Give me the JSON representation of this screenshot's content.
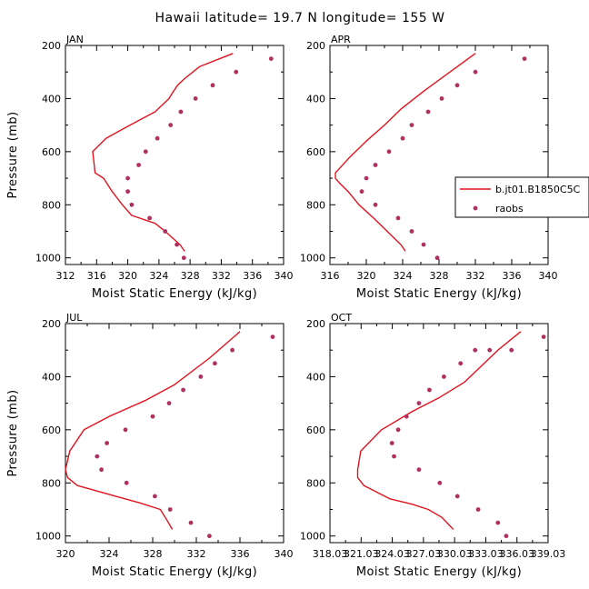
{
  "title": "Hawaii  latitude= 19.7 N longitude= 155 W",
  "line_color": "#e0141e",
  "marker_color": "#b03060",
  "legend": {
    "placement": "right of the APR panel",
    "line_label": "b.jt01.B1850C5C",
    "marker_label": "raobs"
  },
  "chart_data": [
    {
      "type": "line",
      "panel_label": "JAN",
      "xlabel": "Moist Static Energy (kJ/kg)",
      "ylabel": "Pressure (mb)",
      "xlim": [
        312,
        340
      ],
      "ylim": [
        1025,
        200
      ],
      "xticks": [
        "312",
        "316",
        "320",
        "324",
        "328",
        "332",
        "336",
        "340"
      ],
      "yticks": [
        "200",
        "400",
        "600",
        "800",
        "1000"
      ],
      "series": [
        {
          "name": "b.jt01.B1850C5C",
          "style": "line",
          "x": [
            327.3,
            326.7,
            324.8,
            323.5,
            320.5,
            319.3,
            318.0,
            316.9,
            315.8,
            315.5,
            317.2,
            320.3,
            323.5,
            325.3,
            325.7,
            326.4,
            327.3,
            329.2,
            333.5
          ],
          "y": [
            975,
            950,
            900,
            870,
            840,
            800,
            750,
            700,
            680,
            600,
            550,
            500,
            450,
            400,
            380,
            350,
            325,
            280,
            230
          ]
        },
        {
          "name": "raobs",
          "style": "markers",
          "x": [
            327.2,
            326.3,
            324.8,
            322.8,
            320.5,
            320.0,
            320.0,
            321.4,
            322.3,
            323.8,
            325.5,
            326.8,
            328.7,
            330.9,
            333.9,
            338.4
          ],
          "y": [
            1000,
            950,
            900,
            850,
            800,
            750,
            700,
            650,
            600,
            550,
            500,
            450,
            400,
            350,
            300,
            250
          ]
        }
      ]
    },
    {
      "type": "line",
      "panel_label": "APR",
      "xlabel": "Moist Static Energy (kJ/kg)",
      "ylabel": "",
      "xlim": [
        316,
        340
      ],
      "ylim": [
        1025,
        200
      ],
      "xticks": [
        "316",
        "320",
        "324",
        "328",
        "332",
        "336",
        "340"
      ],
      "yticks": [
        "200",
        "400",
        "600",
        "800",
        "1000"
      ],
      "series": [
        {
          "name": "b.jt01.B1850C5C",
          "style": "line",
          "x": [
            324.3,
            323.8,
            322.3,
            320.8,
            319.2,
            318.0,
            317.1,
            316.6,
            316.6,
            318.2,
            320.0,
            322.0,
            323.8,
            326.4,
            329.6,
            332.0
          ],
          "y": [
            975,
            950,
            900,
            850,
            800,
            750,
            720,
            700,
            680,
            620,
            560,
            500,
            440,
            370,
            290,
            230
          ]
        },
        {
          "name": "raobs",
          "style": "markers",
          "x": [
            327.8,
            326.3,
            325.0,
            323.5,
            321.0,
            319.5,
            320.0,
            321.0,
            322.5,
            324.0,
            325.0,
            326.8,
            328.3,
            330.0,
            332.0,
            337.4
          ],
          "y": [
            1000,
            950,
            900,
            850,
            800,
            750,
            700,
            650,
            600,
            550,
            500,
            450,
            400,
            350,
            300,
            250
          ]
        }
      ]
    },
    {
      "type": "line",
      "panel_label": "JUL",
      "xlabel": "Moist Static Energy (kJ/kg)",
      "ylabel": "Pressure (mb)",
      "xlim": [
        320,
        340
      ],
      "ylim": [
        1025,
        200
      ],
      "xticks": [
        "320",
        "324",
        "328",
        "332",
        "336",
        "340"
      ],
      "yticks": [
        "200",
        "400",
        "600",
        "800",
        "1000"
      ],
      "series": [
        {
          "name": "b.jt01.B1850C5C",
          "style": "line",
          "x": [
            329.8,
            329.3,
            328.7,
            326.8,
            324.6,
            321.1,
            320.2,
            320.0,
            320.4,
            321.7,
            324.0,
            327.3,
            330.0,
            333.2,
            336.0
          ],
          "y": [
            975,
            940,
            900,
            875,
            850,
            810,
            780,
            750,
            680,
            600,
            550,
            490,
            430,
            330,
            230
          ]
        },
        {
          "name": "raobs",
          "style": "markers",
          "x": [
            333.2,
            331.5,
            329.6,
            328.2,
            325.6,
            323.3,
            322.9,
            323.8,
            325.5,
            328.0,
            329.5,
            330.8,
            332.4,
            333.7,
            335.3,
            339.0
          ],
          "y": [
            1000,
            950,
            900,
            850,
            800,
            750,
            700,
            650,
            600,
            550,
            500,
            450,
            400,
            350,
            300,
            250
          ]
        }
      ]
    },
    {
      "type": "line",
      "panel_label": "OCT",
      "xlabel": "Moist Static Energy (kJ/kg)",
      "ylabel": "",
      "xlim": [
        318.03,
        339.03
      ],
      "ylim": [
        1025,
        200
      ],
      "xticks": [
        "318.03",
        "321.03",
        "324.03",
        "327.03",
        "330.03",
        "333.03",
        "336.03",
        "339.03"
      ],
      "yticks": [
        "200",
        "400",
        "600",
        "800",
        "1000"
      ],
      "series": [
        {
          "name": "b.jt01.B1850C5C",
          "style": "line",
          "x": [
            329.9,
            328.8,
            327.5,
            325.9,
            323.8,
            321.3,
            320.7,
            320.7,
            321.0,
            323.0,
            326.0,
            328.5,
            331.0,
            334.2,
            336.4
          ],
          "y": [
            975,
            930,
            900,
            880,
            860,
            810,
            780,
            750,
            680,
            600,
            530,
            480,
            420,
            300,
            230
          ]
        },
        {
          "name": "raobs",
          "style": "markers",
          "x": [
            335.0,
            334.2,
            332.3,
            330.3,
            328.6,
            326.6,
            324.2,
            324.0,
            324.6,
            325.4,
            326.6,
            327.6,
            329.0,
            330.6,
            332.0,
            333.4,
            335.5,
            338.6
          ],
          "y": [
            1000,
            950,
            900,
            850,
            800,
            750,
            700,
            650,
            600,
            550,
            500,
            450,
            400,
            350,
            300,
            300,
            300,
            250
          ]
        }
      ]
    }
  ]
}
